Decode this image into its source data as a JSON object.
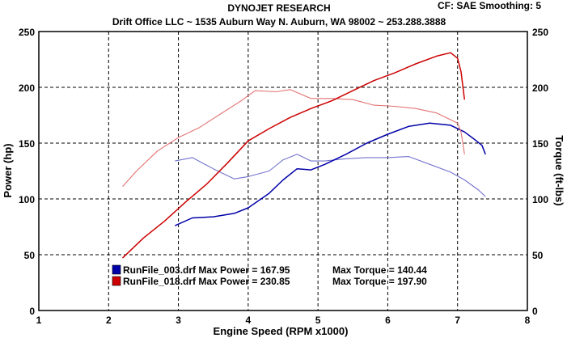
{
  "chart_data": {
    "type": "line",
    "title": "DYNOJET RESEARCH",
    "subtitle": "Drift Office LLC ~ 1535 Auburn Way N. Auburn, WA 98002 ~ 253.288.3888",
    "corner_label": "CF: SAE  Smoothing: 5",
    "xlabel": "Engine Speed (RPM x1000)",
    "ylabel_left": "Power (hp)",
    "ylabel_right": "Torque (ft-lbs)",
    "xlim": [
      1,
      8
    ],
    "ylim": [
      0,
      250
    ],
    "x_ticks": [
      "1",
      "2",
      "3",
      "4",
      "5",
      "6",
      "7",
      "8"
    ],
    "y_ticks": [
      "0",
      "50",
      "100",
      "150",
      "200",
      "250"
    ],
    "grid": true,
    "legend_position": "bottom-center",
    "series": [
      {
        "name": "RunFile_003.drf",
        "color": "#0000a8",
        "legend_text": "RunFile_003.drf Max Power = 167.95",
        "legend_torque": "Max Torque = 140.44",
        "power": [
          [
            2.95,
            76
          ],
          [
            3.2,
            83
          ],
          [
            3.5,
            84
          ],
          [
            3.8,
            87
          ],
          [
            4.0,
            92
          ],
          [
            4.3,
            105
          ],
          [
            4.5,
            117
          ],
          [
            4.7,
            127
          ],
          [
            4.9,
            126
          ],
          [
            5.1,
            131
          ],
          [
            5.4,
            140
          ],
          [
            5.7,
            150
          ],
          [
            6.0,
            158
          ],
          [
            6.3,
            165
          ],
          [
            6.6,
            168
          ],
          [
            6.9,
            166
          ],
          [
            7.1,
            160
          ],
          [
            7.25,
            153
          ],
          [
            7.35,
            148
          ],
          [
            7.4,
            140
          ]
        ],
        "torque": [
          [
            2.95,
            134
          ],
          [
            3.2,
            137
          ],
          [
            3.5,
            127
          ],
          [
            3.8,
            118
          ],
          [
            4.0,
            120
          ],
          [
            4.3,
            125
          ],
          [
            4.5,
            135
          ],
          [
            4.7,
            140
          ],
          [
            4.9,
            134
          ],
          [
            5.1,
            134
          ],
          [
            5.4,
            136
          ],
          [
            5.7,
            137
          ],
          [
            6.0,
            137
          ],
          [
            6.3,
            138
          ],
          [
            6.6,
            131
          ],
          [
            6.9,
            124
          ],
          [
            7.1,
            117
          ],
          [
            7.3,
            108
          ],
          [
            7.4,
            102
          ]
        ]
      },
      {
        "name": "RunFile_018.drf",
        "color": "#cc0000",
        "legend_text": "RunFile_018.drf Max Power = 230.85",
        "legend_torque": "Max Torque = 197.90",
        "power": [
          [
            2.2,
            47
          ],
          [
            2.5,
            65
          ],
          [
            2.8,
            80
          ],
          [
            3.1,
            97
          ],
          [
            3.4,
            113
          ],
          [
            3.7,
            132
          ],
          [
            4.0,
            152
          ],
          [
            4.3,
            163
          ],
          [
            4.6,
            173
          ],
          [
            4.9,
            181
          ],
          [
            5.2,
            188
          ],
          [
            5.5,
            197
          ],
          [
            5.8,
            206
          ],
          [
            6.1,
            213
          ],
          [
            6.4,
            221
          ],
          [
            6.7,
            228
          ],
          [
            6.9,
            231
          ],
          [
            7.0,
            226
          ],
          [
            7.05,
            214
          ],
          [
            7.1,
            189
          ]
        ],
        "torque": [
          [
            2.2,
            111
          ],
          [
            2.4,
            125
          ],
          [
            2.7,
            143
          ],
          [
            3.0,
            155
          ],
          [
            3.3,
            164
          ],
          [
            3.6,
            176
          ],
          [
            3.9,
            188
          ],
          [
            4.1,
            197
          ],
          [
            4.4,
            196
          ],
          [
            4.6,
            198
          ],
          [
            4.9,
            190
          ],
          [
            5.2,
            190
          ],
          [
            5.5,
            189
          ],
          [
            5.8,
            184
          ],
          [
            6.1,
            183
          ],
          [
            6.4,
            181
          ],
          [
            6.7,
            177
          ],
          [
            7.0,
            168
          ],
          [
            7.05,
            160
          ],
          [
            7.1,
            140
          ]
        ]
      }
    ]
  }
}
